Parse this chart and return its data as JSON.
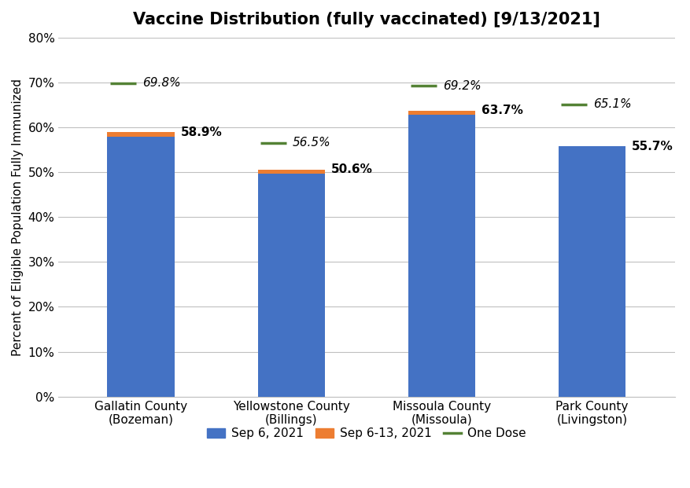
{
  "title": "Vaccine Distribution (fully vaccinated) [9/13/2021]",
  "ylabel": "Percent of Eligible Population Fully Immunized",
  "categories": [
    "Gallatin County\n(Bozeman)",
    "Yellowstone County\n(Billings)",
    "Missoula County\n(Missoula)",
    "Park County\n(Livingston)"
  ],
  "sep6_values": [
    57.8,
    49.6,
    62.8,
    55.7
  ],
  "sep6_13_values": [
    1.1,
    1.0,
    0.9,
    0.0
  ],
  "one_dose_values": [
    69.8,
    56.5,
    69.2,
    65.1
  ],
  "total_labels": [
    "58.9%",
    "50.6%",
    "63.7%",
    "55.7%"
  ],
  "one_dose_labels": [
    "69.8%",
    "56.5%",
    "69.2%",
    "65.1%"
  ],
  "color_sep6": "#4472C4",
  "color_sep6_13": "#ED7D31",
  "color_one_dose": "#548235",
  "ylim_max": 80,
  "yticks": [
    0,
    10,
    20,
    30,
    40,
    50,
    60,
    70,
    80
  ],
  "ytick_labels": [
    "0%",
    "10%",
    "20%",
    "30%",
    "40%",
    "50%",
    "60%",
    "70%",
    "80%"
  ],
  "legend_labels": [
    "Sep 6, 2021",
    "Sep 6-13, 2021",
    "One Dose"
  ],
  "background_color": "#FFFFFF",
  "grid_color": "#C0C0C0",
  "title_fontsize": 15,
  "label_fontsize": 11,
  "tick_fontsize": 11,
  "bar_width": 0.45
}
